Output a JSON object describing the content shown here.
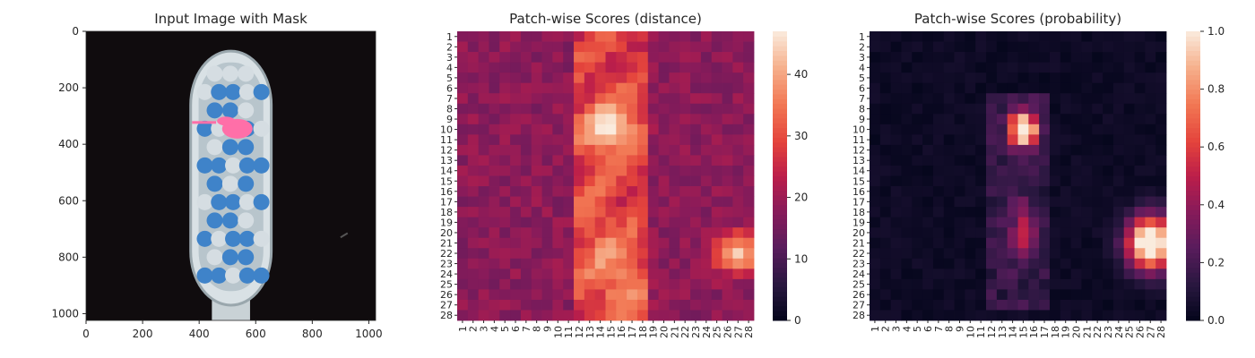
{
  "chart_data": [
    {
      "type": "image",
      "title": "Input Image with Mask",
      "xlim": [
        0,
        1024
      ],
      "ylim": [
        1024,
        0
      ],
      "xticks": [
        0,
        200,
        400,
        600,
        800,
        1000
      ],
      "yticks": [
        0,
        200,
        400,
        600,
        800,
        1000
      ],
      "image_content": "toothbrush head photographed on black background; blue and white bristle tufts; pink mask blob near top center",
      "mask_color": "#ff6fa8"
    },
    {
      "type": "heatmap",
      "title": "Patch-wise Scores (distance)",
      "rows": 28,
      "cols": 28,
      "x_tick_labels": [
        "1",
        "2",
        "3",
        "4",
        "5",
        "6",
        "7",
        "8",
        "9",
        "10",
        "11",
        "12",
        "13",
        "14",
        "15",
        "16",
        "17",
        "18",
        "19",
        "20",
        "21",
        "22",
        "23",
        "24",
        "25",
        "26",
        "27",
        "28"
      ],
      "y_tick_labels": [
        "1",
        "2",
        "3",
        "4",
        "5",
        "6",
        "7",
        "8",
        "9",
        "10",
        "11",
        "12",
        "13",
        "14",
        "15",
        "16",
        "17",
        "18",
        "19",
        "20",
        "21",
        "22",
        "23",
        "24",
        "25",
        "26",
        "27",
        "28"
      ],
      "colorbar_ticks": [
        0,
        10,
        20,
        30,
        40
      ],
      "vmin": 0,
      "vmax": 47,
      "hotspots": [
        {
          "row": 10,
          "col": 15,
          "value": 46
        },
        {
          "row": 22,
          "col": 27,
          "value": 47
        },
        {
          "row": 25,
          "col": 16,
          "value": 40
        }
      ],
      "colormap": "rocket"
    },
    {
      "type": "heatmap",
      "title": "Patch-wise Scores (probability)",
      "rows": 28,
      "cols": 28,
      "x_tick_labels": [
        "1",
        "2",
        "3",
        "4",
        "5",
        "6",
        "7",
        "8",
        "9",
        "10",
        "11",
        "12",
        "13",
        "14",
        "15",
        "16",
        "17",
        "18",
        "19",
        "20",
        "21",
        "22",
        "23",
        "24",
        "25",
        "26",
        "27",
        "28"
      ],
      "y_tick_labels": [
        "1",
        "2",
        "3",
        "4",
        "5",
        "6",
        "7",
        "8",
        "9",
        "10",
        "11",
        "12",
        "13",
        "14",
        "15",
        "16",
        "17",
        "18",
        "19",
        "20",
        "21",
        "22",
        "23",
        "24",
        "25",
        "26",
        "27",
        "28"
      ],
      "colorbar_ticks": [
        0.0,
        0.2,
        0.4,
        0.6,
        0.8,
        1.0
      ],
      "colorbar_tick_labels": [
        "0.0",
        "0.2",
        "0.4",
        "0.6",
        "0.8",
        "1.0"
      ],
      "vmin": 0.0,
      "vmax": 1.0,
      "hotspots": [
        {
          "row": 10,
          "col": 15,
          "value": 1.0
        },
        {
          "row": 21,
          "col": 27,
          "value": 1.0
        }
      ],
      "colormap": "rocket"
    }
  ]
}
